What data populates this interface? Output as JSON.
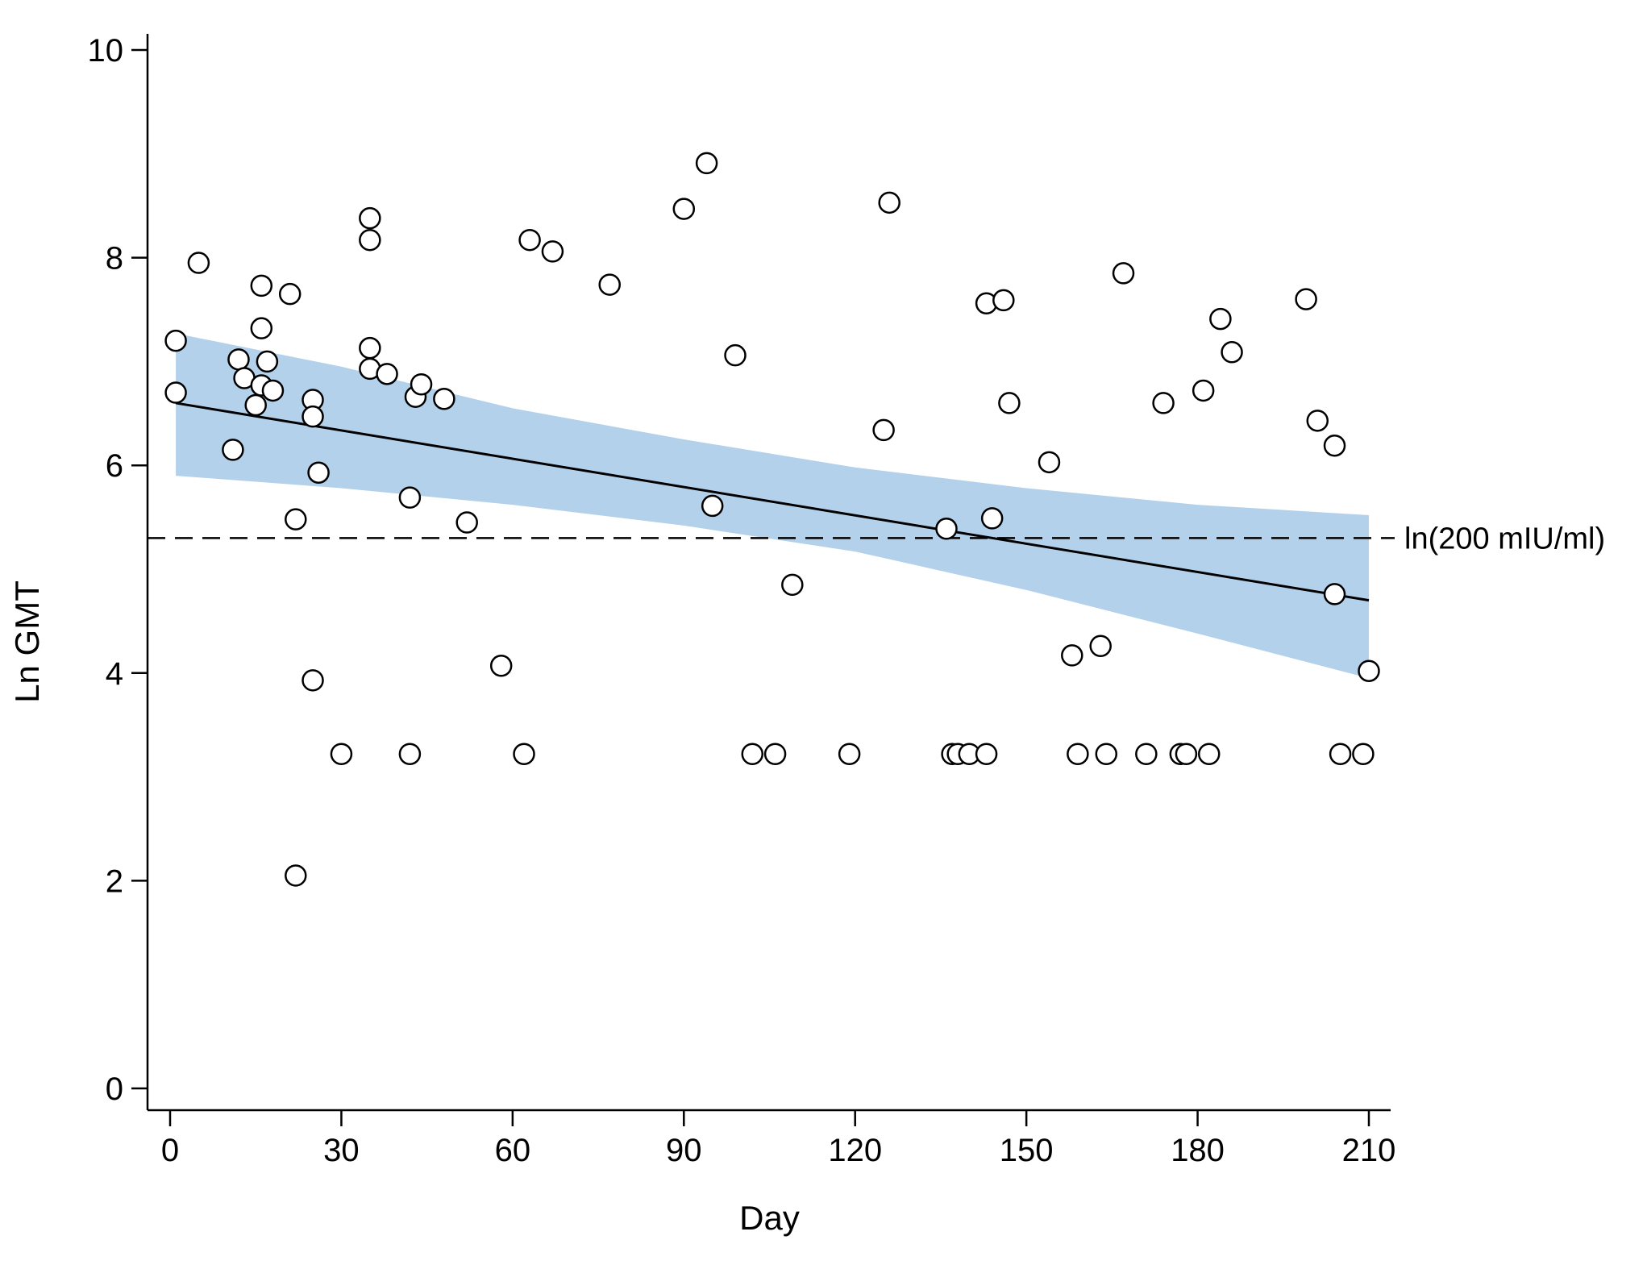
{
  "chart_data": {
    "type": "scatter",
    "xlabel": "Day",
    "ylabel": "Ln GMT",
    "xlim": [
      0,
      210
    ],
    "ylim": [
      0,
      10
    ],
    "xticks": [
      0,
      30,
      60,
      90,
      120,
      150,
      180,
      210
    ],
    "yticks": [
      0,
      2,
      4,
      6,
      8,
      10
    ],
    "grid": false,
    "colors": {
      "ci_band": "#b3d1ea",
      "line": "#000000",
      "marker_stroke": "#000000",
      "marker_fill": "#ffffff"
    },
    "reference_line": {
      "y": 5.3,
      "style": "dashed",
      "label": "ln(200 mIU/ml)"
    },
    "fit_line": {
      "x": [
        1,
        210
      ],
      "y": [
        6.6,
        4.7
      ]
    },
    "confidence_band": {
      "x": [
        1,
        30,
        60,
        90,
        120,
        150,
        180,
        210
      ],
      "lower": [
        5.9,
        5.78,
        5.62,
        5.42,
        5.17,
        4.8,
        4.38,
        3.95
      ],
      "upper": [
        7.27,
        6.95,
        6.55,
        6.25,
        5.98,
        5.78,
        5.62,
        5.52
      ]
    },
    "points": [
      {
        "x": 1,
        "y": 7.2
      },
      {
        "x": 1,
        "y": 6.7
      },
      {
        "x": 5,
        "y": 7.95
      },
      {
        "x": 11,
        "y": 6.15
      },
      {
        "x": 12,
        "y": 7.02
      },
      {
        "x": 13,
        "y": 6.84
      },
      {
        "x": 15,
        "y": 6.58
      },
      {
        "x": 16,
        "y": 7.73
      },
      {
        "x": 16,
        "y": 7.32
      },
      {
        "x": 16,
        "y": 6.77
      },
      {
        "x": 17,
        "y": 7.0
      },
      {
        "x": 18,
        "y": 6.72
      },
      {
        "x": 21,
        "y": 7.65
      },
      {
        "x": 22,
        "y": 5.48
      },
      {
        "x": 22,
        "y": 2.05
      },
      {
        "x": 25,
        "y": 6.63
      },
      {
        "x": 25,
        "y": 6.47
      },
      {
        "x": 25,
        "y": 3.93
      },
      {
        "x": 26,
        "y": 5.93
      },
      {
        "x": 30,
        "y": 3.22
      },
      {
        "x": 35,
        "y": 8.38
      },
      {
        "x": 35,
        "y": 8.17
      },
      {
        "x": 35,
        "y": 7.13
      },
      {
        "x": 35,
        "y": 6.93
      },
      {
        "x": 38,
        "y": 6.88
      },
      {
        "x": 42,
        "y": 5.69
      },
      {
        "x": 42,
        "y": 3.22
      },
      {
        "x": 43,
        "y": 6.66
      },
      {
        "x": 44,
        "y": 6.78
      },
      {
        "x": 48,
        "y": 6.64
      },
      {
        "x": 52,
        "y": 5.45
      },
      {
        "x": 58,
        "y": 4.07
      },
      {
        "x": 62,
        "y": 3.22
      },
      {
        "x": 63,
        "y": 8.17
      },
      {
        "x": 67,
        "y": 8.06
      },
      {
        "x": 77,
        "y": 7.74
      },
      {
        "x": 90,
        "y": 8.47
      },
      {
        "x": 94,
        "y": 8.91
      },
      {
        "x": 95,
        "y": 5.61
      },
      {
        "x": 99,
        "y": 7.06
      },
      {
        "x": 102,
        "y": 3.22
      },
      {
        "x": 106,
        "y": 3.22
      },
      {
        "x": 109,
        "y": 4.85
      },
      {
        "x": 119,
        "y": 3.22
      },
      {
        "x": 125,
        "y": 6.34
      },
      {
        "x": 126,
        "y": 8.53
      },
      {
        "x": 136,
        "y": 5.39
      },
      {
        "x": 137,
        "y": 3.22
      },
      {
        "x": 138,
        "y": 3.22
      },
      {
        "x": 140,
        "y": 3.22
      },
      {
        "x": 143,
        "y": 7.56
      },
      {
        "x": 143,
        "y": 3.22
      },
      {
        "x": 144,
        "y": 5.49
      },
      {
        "x": 146,
        "y": 7.59
      },
      {
        "x": 147,
        "y": 6.6
      },
      {
        "x": 154,
        "y": 6.03
      },
      {
        "x": 158,
        "y": 4.17
      },
      {
        "x": 159,
        "y": 3.22
      },
      {
        "x": 163,
        "y": 4.26
      },
      {
        "x": 164,
        "y": 3.22
      },
      {
        "x": 167,
        "y": 7.85
      },
      {
        "x": 171,
        "y": 3.22
      },
      {
        "x": 174,
        "y": 6.6
      },
      {
        "x": 177,
        "y": 3.22
      },
      {
        "x": 178,
        "y": 3.22
      },
      {
        "x": 181,
        "y": 6.72
      },
      {
        "x": 182,
        "y": 3.22
      },
      {
        "x": 184,
        "y": 7.41
      },
      {
        "x": 186,
        "y": 7.09
      },
      {
        "x": 199,
        "y": 7.6
      },
      {
        "x": 201,
        "y": 6.43
      },
      {
        "x": 204,
        "y": 6.19
      },
      {
        "x": 204,
        "y": 4.76
      },
      {
        "x": 205,
        "y": 3.22
      },
      {
        "x": 209,
        "y": 3.22
      },
      {
        "x": 210,
        "y": 4.02
      }
    ]
  }
}
